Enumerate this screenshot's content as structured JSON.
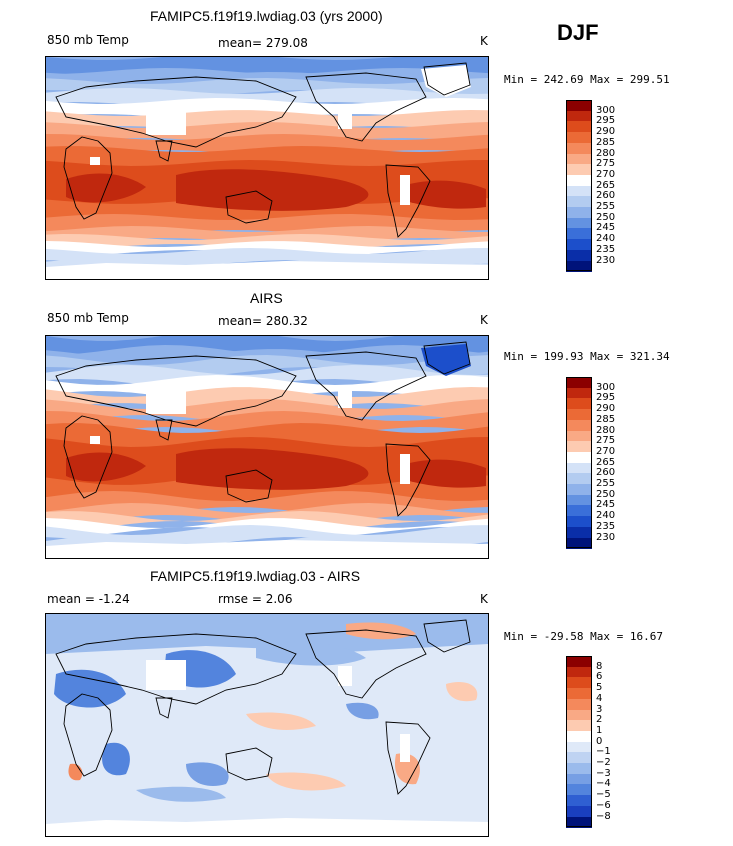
{
  "season": "DJF",
  "units": "K",
  "panels": [
    {
      "title": "FAMIPC5.f19f19.lwdiag.03 (yrs 2000)",
      "left_label": "850 mb Temp",
      "stat_label": "mean= 279.08",
      "units": "K",
      "minmax": "Min = 242.69 Max = 299.51",
      "scale": "abs",
      "colorbar_labels": [
        "300",
        "295",
        "290",
        "285",
        "280",
        "275",
        "270",
        "265",
        "260",
        "255",
        "250",
        "245",
        "240",
        "235",
        "230"
      ]
    },
    {
      "title": "AIRS",
      "left_label": "850 mb Temp",
      "stat_label": "mean= 280.32",
      "units": "K",
      "minmax": "Min = 199.93 Max = 321.34",
      "scale": "abs",
      "colorbar_labels": [
        "300",
        "295",
        "290",
        "285",
        "280",
        "275",
        "270",
        "265",
        "260",
        "255",
        "250",
        "245",
        "240",
        "235",
        "230"
      ]
    },
    {
      "title": "FAMIPC5.f19f19.lwdiag.03 - AIRS",
      "left_label": "mean =   -1.24",
      "stat_label": "rmse =    2.06",
      "units": "K",
      "minmax": "Min = -29.58 Max =  16.67",
      "scale": "diff",
      "colorbar_labels": [
        "8",
        "6",
        "5",
        "4",
        "3",
        "2",
        "1",
        "0",
        "−1",
        "−2",
        "−3",
        "−4",
        "−5",
        "−6",
        "−8"
      ]
    }
  ],
  "colors": {
    "abs": [
      "#8b0000",
      "#c0280e",
      "#dd4c1c",
      "#eb6a36",
      "#f4895c",
      "#f9a985",
      "#fdcbb1",
      "#ffffff",
      "#d4e2f7",
      "#b3ccf0",
      "#8fb2ea",
      "#6392e1",
      "#3a6fd9",
      "#1c4fcb",
      "#0a2ea8",
      "#00137a"
    ],
    "diff": [
      "#8b0000",
      "#c0280e",
      "#dd4c1c",
      "#eb6a36",
      "#f4895c",
      "#f9a985",
      "#fdcbb1",
      "#ffffff",
      "#dfe9f8",
      "#bfd3f2",
      "#9bbbec",
      "#779fe4",
      "#5384dd",
      "#2f5fd2",
      "#1a3fbf",
      "#00137a"
    ]
  }
}
